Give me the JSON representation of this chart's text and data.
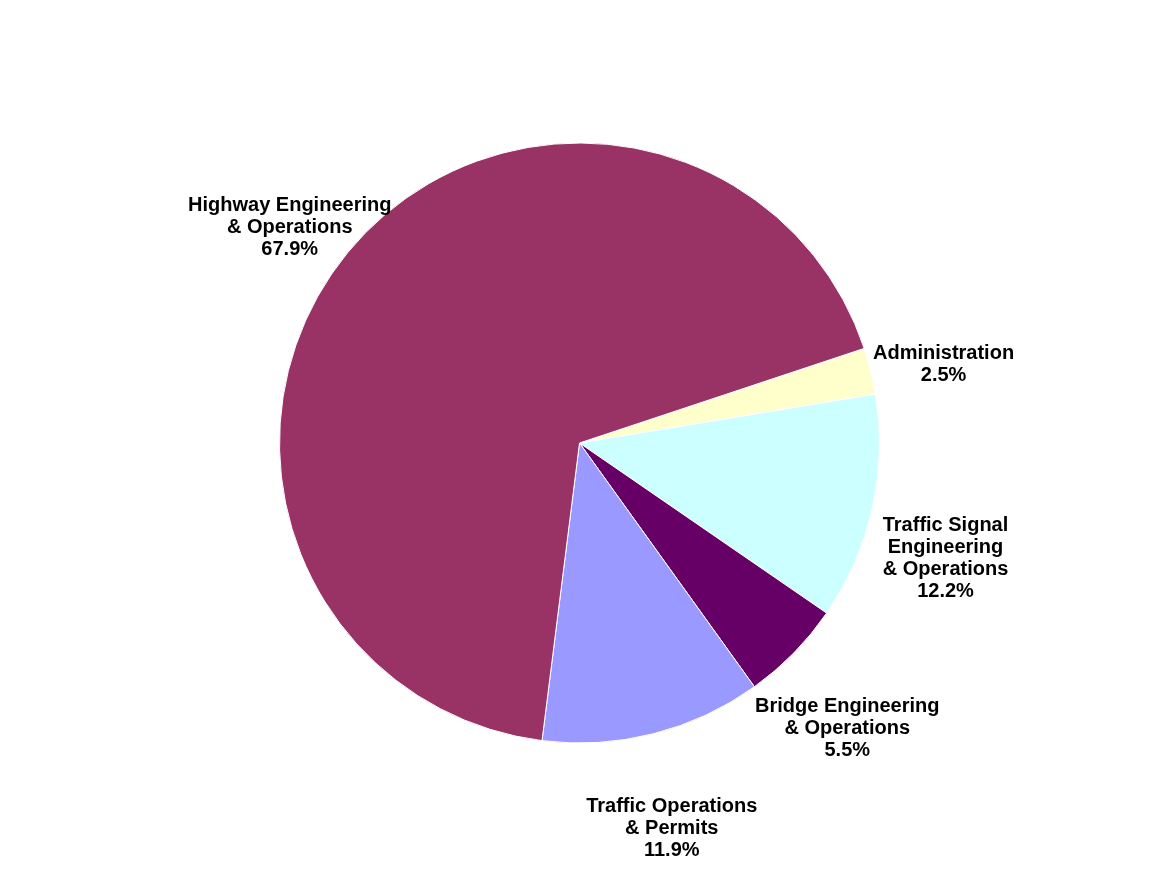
{
  "chart_data": {
    "type": "pie",
    "categories": [
      "Administration",
      "Traffic Signal\nEngineering\n& Operations",
      "Bridge  Engineering\n& Operations",
      "Traffic Operations\n& Permits",
      "Highway Engineering\n& Operations"
    ],
    "values": [
      2.5,
      12.2,
      5.5,
      11.9,
      67.9
    ],
    "value_labels": [
      "2.5%",
      "12.2%",
      "5.5%",
      "11.9%",
      "67.9%"
    ],
    "colors": [
      "#ffffcc",
      "#ccffff",
      "#660066",
      "#9999ff",
      "#993366"
    ],
    "legend": false
  }
}
